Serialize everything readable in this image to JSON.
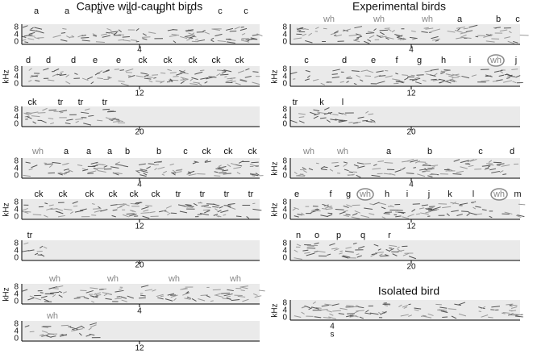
{
  "left_title": "Captive wild-caught birds",
  "right_title": "Experimental birds",
  "left": [
    {
      "labels": [
        "a",
        "a",
        "a",
        "a",
        "b",
        "b",
        "c",
        "c"
      ],
      "yticks": [
        8,
        4,
        0
      ],
      "time_tick": 4
    },
    {
      "labels": [
        "d",
        "d",
        "d",
        "e",
        "e",
        "ck",
        "ck",
        "ck",
        "ck",
        "ck"
      ],
      "yticks": [
        8,
        4,
        0
      ],
      "ylabel": "kHz",
      "time_tick": 12
    },
    {
      "labels": [
        "ck",
        "tr",
        "tr",
        "tr"
      ],
      "yticks": [
        8,
        4,
        0
      ],
      "time_tick": 20
    },
    {
      "labels": [
        "wh",
        "a",
        "a",
        "a",
        "b",
        "b",
        "c",
        "ck",
        "ck",
        "ck"
      ],
      "yticks": [
        8,
        4,
        0
      ],
      "time_tick": 4
    },
    {
      "labels": [
        "ck",
        "ck",
        "ck",
        "ck",
        "ck",
        "ck",
        "tr",
        "tr",
        "tr",
        "tr"
      ],
      "yticks": [
        8,
        4,
        0
      ],
      "ylabel": "kHz",
      "time_tick": 12
    },
    {
      "labels": [
        "tr"
      ],
      "yticks": [
        8,
        4,
        0
      ],
      "time_tick": 20
    },
    {
      "labels": [
        "wh",
        "wh",
        "wh",
        "wh"
      ],
      "yticks": [
        8,
        4,
        0
      ],
      "ylabel": "kHz",
      "time_tick": 4
    },
    {
      "labels": [
        "wh"
      ],
      "yticks": [
        8,
        4,
        0
      ],
      "time_tick": 12
    }
  ],
  "right": [
    {
      "labels": [
        "wh",
        "wh",
        "wh",
        "a",
        "b",
        "c"
      ],
      "yticks": [
        8,
        4,
        0
      ],
      "time_tick": 4
    },
    {
      "labels": [
        "c",
        "d",
        "e",
        "f",
        "g",
        "h",
        "i",
        "wh",
        "j"
      ],
      "yticks": [
        8,
        4,
        0
      ],
      "ylabel": "kHz",
      "time_tick": 12
    },
    {
      "labels": [
        "tr",
        "k",
        "l"
      ],
      "yticks": [
        8,
        4,
        0
      ],
      "time_tick": 20
    },
    {
      "labels": [
        "wh",
        "wh",
        "a",
        "b",
        "c",
        "d"
      ],
      "yticks": [
        8,
        4,
        0
      ],
      "ylabel": "kHz",
      "time_tick": 4
    },
    {
      "labels": [
        "e",
        "f",
        "g",
        "wh",
        "h",
        "i",
        "j",
        "k",
        "l",
        "wh",
        "m"
      ],
      "yticks": [
        8,
        4,
        0
      ],
      "ylabel": "kHz",
      "time_tick": 12
    },
    {
      "labels": [
        "n",
        "o",
        "p",
        "q",
        "r"
      ],
      "yticks": [
        8,
        4,
        0
      ],
      "time_tick": 20
    }
  ],
  "isolated": {
    "title": "Isolated bird",
    "yticks": [
      8,
      4,
      0
    ],
    "ylabel": "kHz",
    "time_tick": 4,
    "time_unit": "s"
  }
}
